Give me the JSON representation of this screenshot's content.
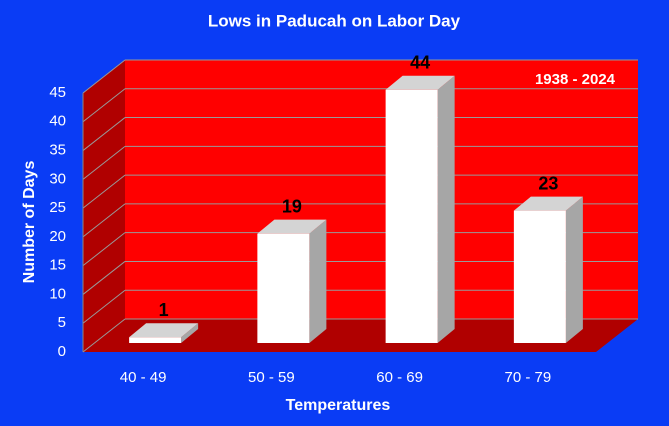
{
  "chart_data": {
    "type": "bar",
    "title": "Lows in Paducah on Labor Day",
    "annotation": "1938 - 2024",
    "categories": [
      "40 - 49",
      "50 - 59",
      "60 - 69",
      "70 - 79"
    ],
    "values": [
      1,
      19,
      44,
      23
    ],
    "color": "#ffffff",
    "xlabel": "Temperatures",
    "ylabel": "Number of Days",
    "ylim": [
      0,
      45
    ],
    "yticks": [
      0,
      5,
      10,
      15,
      20,
      25,
      30,
      35,
      40,
      45
    ],
    "grid": true
  }
}
